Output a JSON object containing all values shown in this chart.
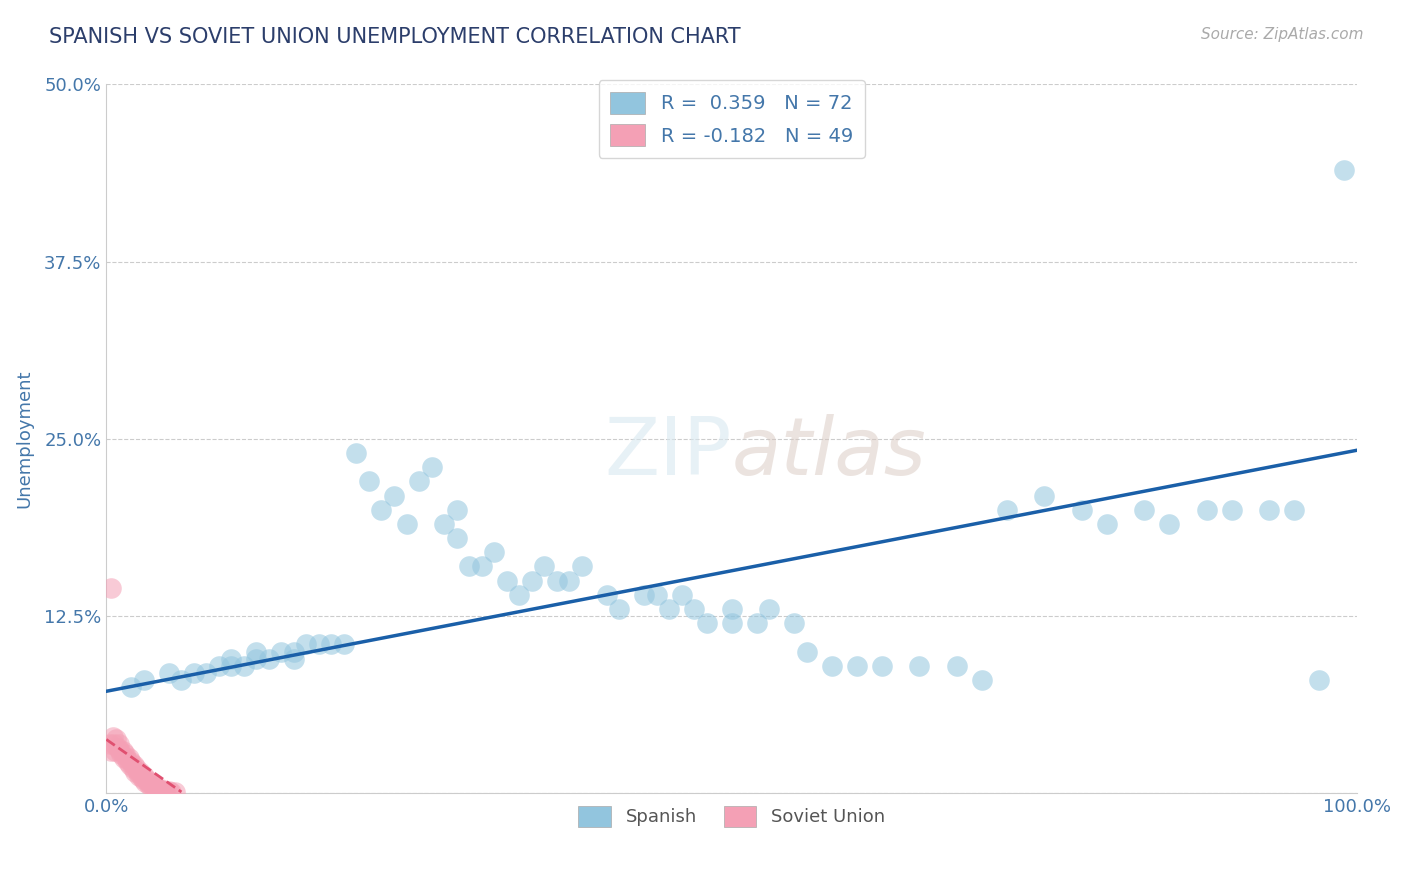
{
  "title": "SPANISH VS SOVIET UNION UNEMPLOYMENT CORRELATION CHART",
  "source": "Source: ZipAtlas.com",
  "ylabel": "Unemployment",
  "xlim": [
    0.0,
    1.0
  ],
  "ylim": [
    0.0,
    0.5
  ],
  "yticks": [
    0.0,
    0.125,
    0.25,
    0.375,
    0.5
  ],
  "ytick_labels": [
    "",
    "12.5%",
    "25.0%",
    "37.5%",
    "50.0%"
  ],
  "xticks": [
    0.0,
    1.0
  ],
  "xtick_labels": [
    "0.0%",
    "100.0%"
  ],
  "spanish_color": "#92c5de",
  "soviet_color": "#f4a0b5",
  "trend_blue": "#1a5fa8",
  "trend_pink": "#e05070",
  "R_spanish": 0.359,
  "N_spanish": 72,
  "R_soviet": -0.182,
  "N_soviet": 49,
  "spanish_x": [
    0.02,
    0.03,
    0.05,
    0.06,
    0.07,
    0.08,
    0.09,
    0.1,
    0.1,
    0.11,
    0.12,
    0.12,
    0.13,
    0.14,
    0.15,
    0.15,
    0.16,
    0.17,
    0.18,
    0.19,
    0.2,
    0.21,
    0.22,
    0.23,
    0.24,
    0.25,
    0.26,
    0.27,
    0.28,
    0.28,
    0.29,
    0.3,
    0.31,
    0.32,
    0.33,
    0.34,
    0.35,
    0.36,
    0.37,
    0.38,
    0.4,
    0.41,
    0.43,
    0.44,
    0.45,
    0.46,
    0.47,
    0.48,
    0.5,
    0.5,
    0.52,
    0.53,
    0.55,
    0.56,
    0.58,
    0.6,
    0.62,
    0.65,
    0.68,
    0.7,
    0.72,
    0.75,
    0.78,
    0.8,
    0.83,
    0.85,
    0.88,
    0.9,
    0.93,
    0.95,
    0.97,
    0.99
  ],
  "spanish_y": [
    0.075,
    0.08,
    0.085,
    0.08,
    0.085,
    0.085,
    0.09,
    0.095,
    0.09,
    0.09,
    0.1,
    0.095,
    0.095,
    0.1,
    0.1,
    0.095,
    0.105,
    0.105,
    0.105,
    0.105,
    0.24,
    0.22,
    0.2,
    0.21,
    0.19,
    0.22,
    0.23,
    0.19,
    0.2,
    0.18,
    0.16,
    0.16,
    0.17,
    0.15,
    0.14,
    0.15,
    0.16,
    0.15,
    0.15,
    0.16,
    0.14,
    0.13,
    0.14,
    0.14,
    0.13,
    0.14,
    0.13,
    0.12,
    0.13,
    0.12,
    0.12,
    0.13,
    0.12,
    0.1,
    0.09,
    0.09,
    0.09,
    0.09,
    0.09,
    0.08,
    0.2,
    0.21,
    0.2,
    0.19,
    0.2,
    0.19,
    0.2,
    0.2,
    0.2,
    0.2,
    0.08,
    0.44
  ],
  "soviet_x": [
    0.003,
    0.004,
    0.005,
    0.006,
    0.007,
    0.008,
    0.009,
    0.01,
    0.011,
    0.012,
    0.013,
    0.014,
    0.015,
    0.016,
    0.017,
    0.018,
    0.019,
    0.02,
    0.021,
    0.022,
    0.023,
    0.024,
    0.025,
    0.026,
    0.027,
    0.028,
    0.029,
    0.03,
    0.031,
    0.032,
    0.033,
    0.034,
    0.035,
    0.036,
    0.037,
    0.038,
    0.039,
    0.04,
    0.041,
    0.042,
    0.043,
    0.044,
    0.045,
    0.046,
    0.047,
    0.048,
    0.05,
    0.052,
    0.055
  ],
  "soviet_y": [
    0.035,
    0.03,
    0.04,
    0.035,
    0.03,
    0.038,
    0.032,
    0.035,
    0.03,
    0.028,
    0.03,
    0.025,
    0.028,
    0.025,
    0.022,
    0.025,
    0.02,
    0.022,
    0.018,
    0.02,
    0.015,
    0.018,
    0.015,
    0.012,
    0.015,
    0.012,
    0.01,
    0.012,
    0.008,
    0.01,
    0.008,
    0.006,
    0.008,
    0.005,
    0.006,
    0.004,
    0.005,
    0.004,
    0.003,
    0.003,
    0.002,
    0.003,
    0.002,
    0.002,
    0.001,
    0.002,
    0.002,
    0.001,
    0.001
  ],
  "soviet_outlier_x": [
    0.004
  ],
  "soviet_outlier_y": [
    0.145
  ],
  "background_color": "#ffffff",
  "grid_color": "#cccccc",
  "title_color": "#2c3e6b",
  "axis_color": "#4477aa",
  "tick_color": "#4477aa"
}
